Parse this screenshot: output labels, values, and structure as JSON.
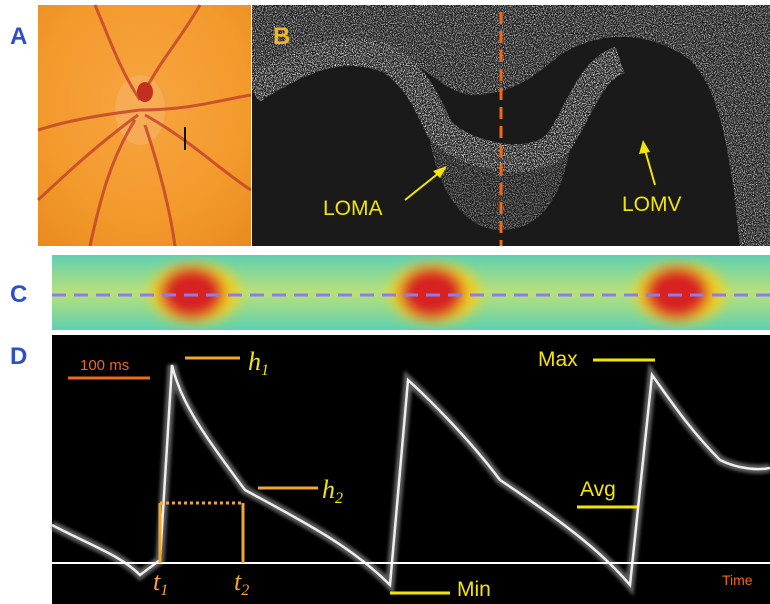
{
  "panels": {
    "a": {
      "label": "A"
    },
    "b": {
      "label": "B",
      "annotations": [
        "LOMA",
        "LOMV"
      ]
    },
    "c": {
      "label": "C"
    },
    "d": {
      "label": "D",
      "scale_bar": "100 ms",
      "axis_label": "Time",
      "markers": {
        "h1": {
          "base": "h",
          "sub": "1"
        },
        "h2": {
          "base": "h",
          "sub": "2"
        },
        "t1": {
          "base": "t",
          "sub": "1"
        },
        "t2": {
          "base": "t",
          "sub": "2"
        },
        "max": "Max",
        "avg": "Avg",
        "min": "Min"
      }
    }
  }
}
